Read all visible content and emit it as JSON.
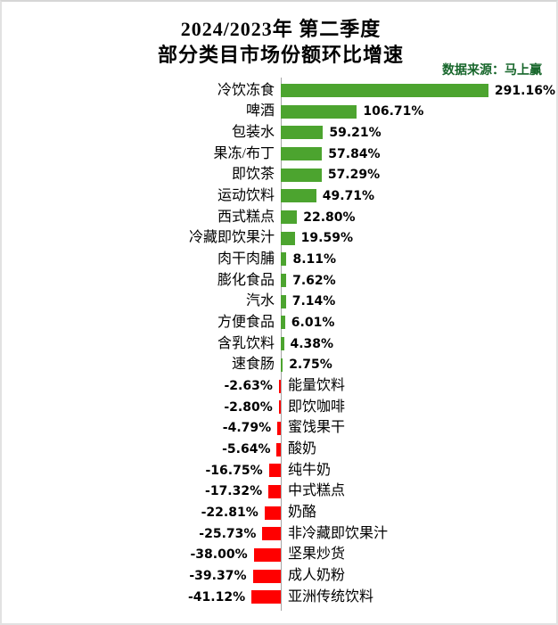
{
  "title": {
    "line1": "2024/2023年  第二季度",
    "line2": "部分类目市场份额环比增速"
  },
  "source": "数据来源：马上赢",
  "colors": {
    "positive_bar": "#4CA42F",
    "negative_bar": "#FF0000",
    "source_text": "#17662B",
    "axis_line": "#A6A6A6",
    "text": "#000000",
    "background": "#FFFFFF"
  },
  "chart_data": {
    "type": "bar",
    "orientation": "horizontal",
    "title": "2024/2023年 第二季度 部分类目市场份额环比增速",
    "xlabel": "",
    "ylabel": "",
    "unit": "%",
    "legend": null,
    "grid": false,
    "baseline": 0,
    "value_label_position": "outside-bar-end",
    "category_label_position": "opposite-side-of-axis",
    "categories": [
      "冷饮冻食",
      "啤酒",
      "包装水",
      "果冻/布丁",
      "即饮茶",
      "运动饮料",
      "西式糕点",
      "冷藏即饮果汁",
      "肉干肉脯",
      "膨化食品",
      "汽水",
      "方便食品",
      "含乳饮料",
      "速食肠",
      "能量饮料",
      "即饮咖啡",
      "蜜饯果干",
      "酸奶",
      "纯牛奶",
      "中式糕点",
      "奶酪",
      "非冷藏即饮果汁",
      "坚果炒货",
      "成人奶粉",
      "亚洲传统饮料"
    ],
    "values": [
      291.16,
      106.71,
      59.21,
      57.84,
      57.29,
      49.71,
      22.8,
      19.59,
      8.11,
      7.62,
      7.14,
      6.01,
      4.38,
      2.75,
      -2.63,
      -2.8,
      -4.79,
      -5.64,
      -16.75,
      -17.32,
      -22.81,
      -25.73,
      -38.0,
      -39.37,
      -41.12
    ],
    "value_labels": [
      "291.16%",
      "106.71%",
      "59.21%",
      "57.84%",
      "57.29%",
      "49.71%",
      "22.80%",
      "19.59%",
      "8.11%",
      "7.62%",
      "7.14%",
      "6.01%",
      "4.38%",
      "2.75%",
      "-2.63%",
      "-2.80%",
      "-4.79%",
      "-5.64%",
      "-16.75%",
      "-17.32%",
      "-22.81%",
      "-25.73%",
      "-38.00%",
      "-39.37%",
      "-41.12%"
    ]
  }
}
